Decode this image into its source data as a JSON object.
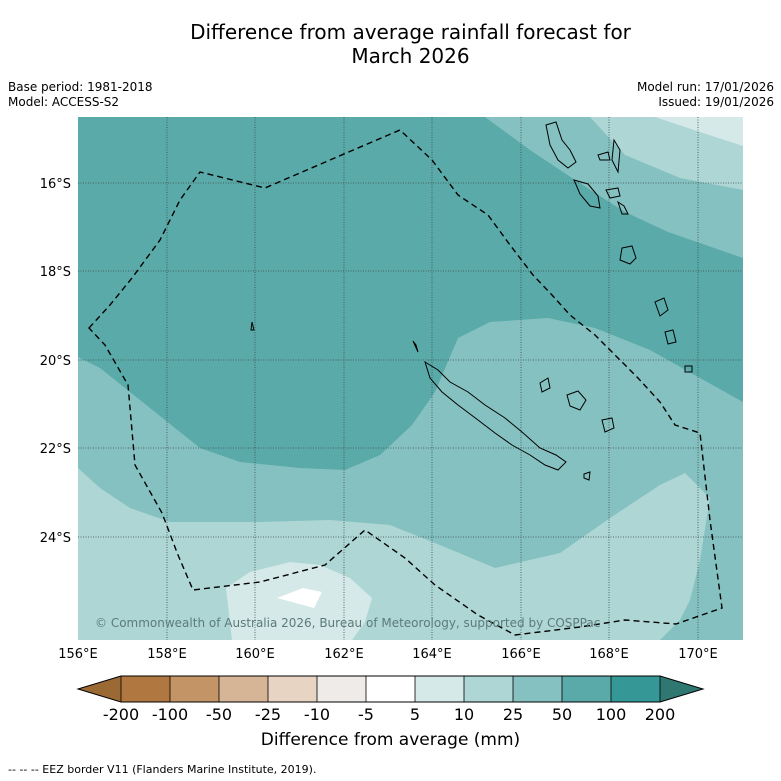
{
  "title_line1": "Difference from average rainfall forecast for",
  "title_line2": "March 2026",
  "meta": {
    "base_period": "Base period: 1981-2018",
    "model": "Model: ACCESS-S2",
    "model_run": "Model run: 17/01/2026",
    "issued": "Issued: 19/01/2026"
  },
  "map": {
    "copyright": "© Commonwealth of Australia 2026, Bureau of Meteorology, supported by COSPPac",
    "lon_labels": [
      "156°E",
      "158°E",
      "160°E",
      "162°E",
      "164°E",
      "166°E",
      "168°E",
      "170°E"
    ],
    "lat_labels": [
      "16°S",
      "18°S",
      "20°S",
      "22°S",
      "24°S"
    ]
  },
  "colorbar": {
    "ticks": [
      "-200",
      "-100",
      "-50",
      "-25",
      "-10",
      "-5",
      "5",
      "10",
      "25",
      "50",
      "100",
      "200"
    ],
    "title": "Difference from average (mm)",
    "colors": {
      "under": "#9a6934",
      "c1": "#b07840",
      "c2": "#c39566",
      "c3": "#d6b596",
      "c4": "#e8d4c2",
      "c5": "#efebe8",
      "c6": "#ffffff",
      "c7": "#d4e9e8",
      "c8": "#add6d5",
      "c9": "#85c1c0",
      "c10": "#5aaaaa",
      "c11": "#359896",
      "over": "#2f7872"
    }
  },
  "footnote": "--  --  -- EEZ border V11 (Flanders Marine Institute, 2019)."
}
